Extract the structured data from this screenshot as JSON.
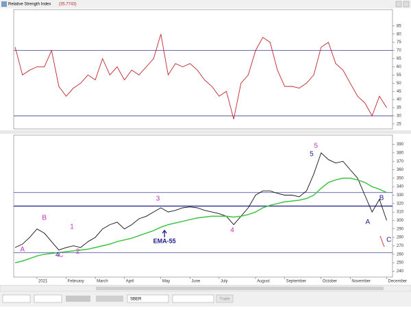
{
  "window": {
    "title": "Relative Strength Index",
    "value": "(35.7743)"
  },
  "toolbar": {
    "symbol": "SBER",
    "button": "Trade"
  },
  "chart_data": [
    {
      "type": "line",
      "ylim": [
        22,
        95
      ],
      "yticks": [
        25,
        30,
        35,
        40,
        45,
        50,
        55,
        60,
        65,
        70,
        75,
        80,
        85
      ],
      "hlines": [
        70,
        30
      ],
      "hline_color": "#3a3a9a",
      "series": [
        {
          "color": "#c0262b",
          "values": [
            72,
            55,
            58,
            60,
            60,
            70,
            48,
            42,
            47,
            50,
            55,
            52,
            65,
            55,
            60,
            52,
            58,
            55,
            60,
            65,
            80,
            55,
            62,
            60,
            62,
            58,
            52,
            48,
            42,
            45,
            28,
            50,
            55,
            70,
            78,
            75,
            58,
            48,
            48,
            47,
            50,
            55,
            72,
            75,
            62,
            58,
            50,
            42,
            38,
            30,
            42,
            35
          ]
        }
      ]
    },
    {
      "type": "line",
      "ylim": [
        233,
        401
      ],
      "yticks": [
        240,
        250,
        260,
        270,
        280,
        290,
        300,
        310,
        320,
        330,
        340,
        350,
        360,
        370,
        380,
        390
      ],
      "hlines": [
        333,
        317,
        262
      ],
      "hline_color": "#3a3a9a",
      "categories": [
        null,
        null,
        null,
        "2021",
        null,
        null,
        null,
        "February",
        null,
        null,
        null,
        "March",
        null,
        null,
        null,
        "April",
        null,
        null,
        null,
        null,
        "May",
        null,
        null,
        null,
        "June",
        null,
        null,
        null,
        "July",
        null,
        null,
        null,
        null,
        "August",
        null,
        null,
        null,
        "September",
        null,
        null,
        null,
        null,
        "October",
        null,
        null,
        null,
        "November",
        null,
        null,
        null,
        null,
        "December"
      ],
      "series": [
        {
          "color": "#111111",
          "values": [
            268,
            272,
            280,
            290,
            285,
            275,
            265,
            268,
            270,
            268,
            275,
            280,
            290,
            295,
            298,
            290,
            295,
            302,
            305,
            310,
            315,
            310,
            312,
            315,
            316,
            315,
            312,
            310,
            308,
            305,
            295,
            305,
            315,
            330,
            335,
            335,
            332,
            330,
            330,
            328,
            335,
            355,
            380,
            372,
            368,
            370,
            360,
            350,
            330,
            310,
            325,
            300
          ]
        },
        {
          "color": "#3cc43c",
          "values": [
            250,
            252,
            255,
            258,
            260,
            261,
            262,
            263,
            264,
            265,
            266,
            268,
            270,
            272,
            275,
            277,
            279,
            282,
            285,
            288,
            292,
            295,
            297,
            299,
            301,
            303,
            304,
            305,
            305,
            305,
            304,
            305,
            307,
            310,
            315,
            318,
            320,
            322,
            323,
            324,
            326,
            330,
            338,
            345,
            348,
            350,
            350,
            348,
            345,
            340,
            337,
            333
          ]
        }
      ],
      "annotations": [
        "A",
        "B",
        "1",
        "2",
        "4",
        "C",
        "3",
        "EMA-55",
        "4",
        "5",
        "5",
        "A",
        "B",
        "C"
      ]
    }
  ]
}
